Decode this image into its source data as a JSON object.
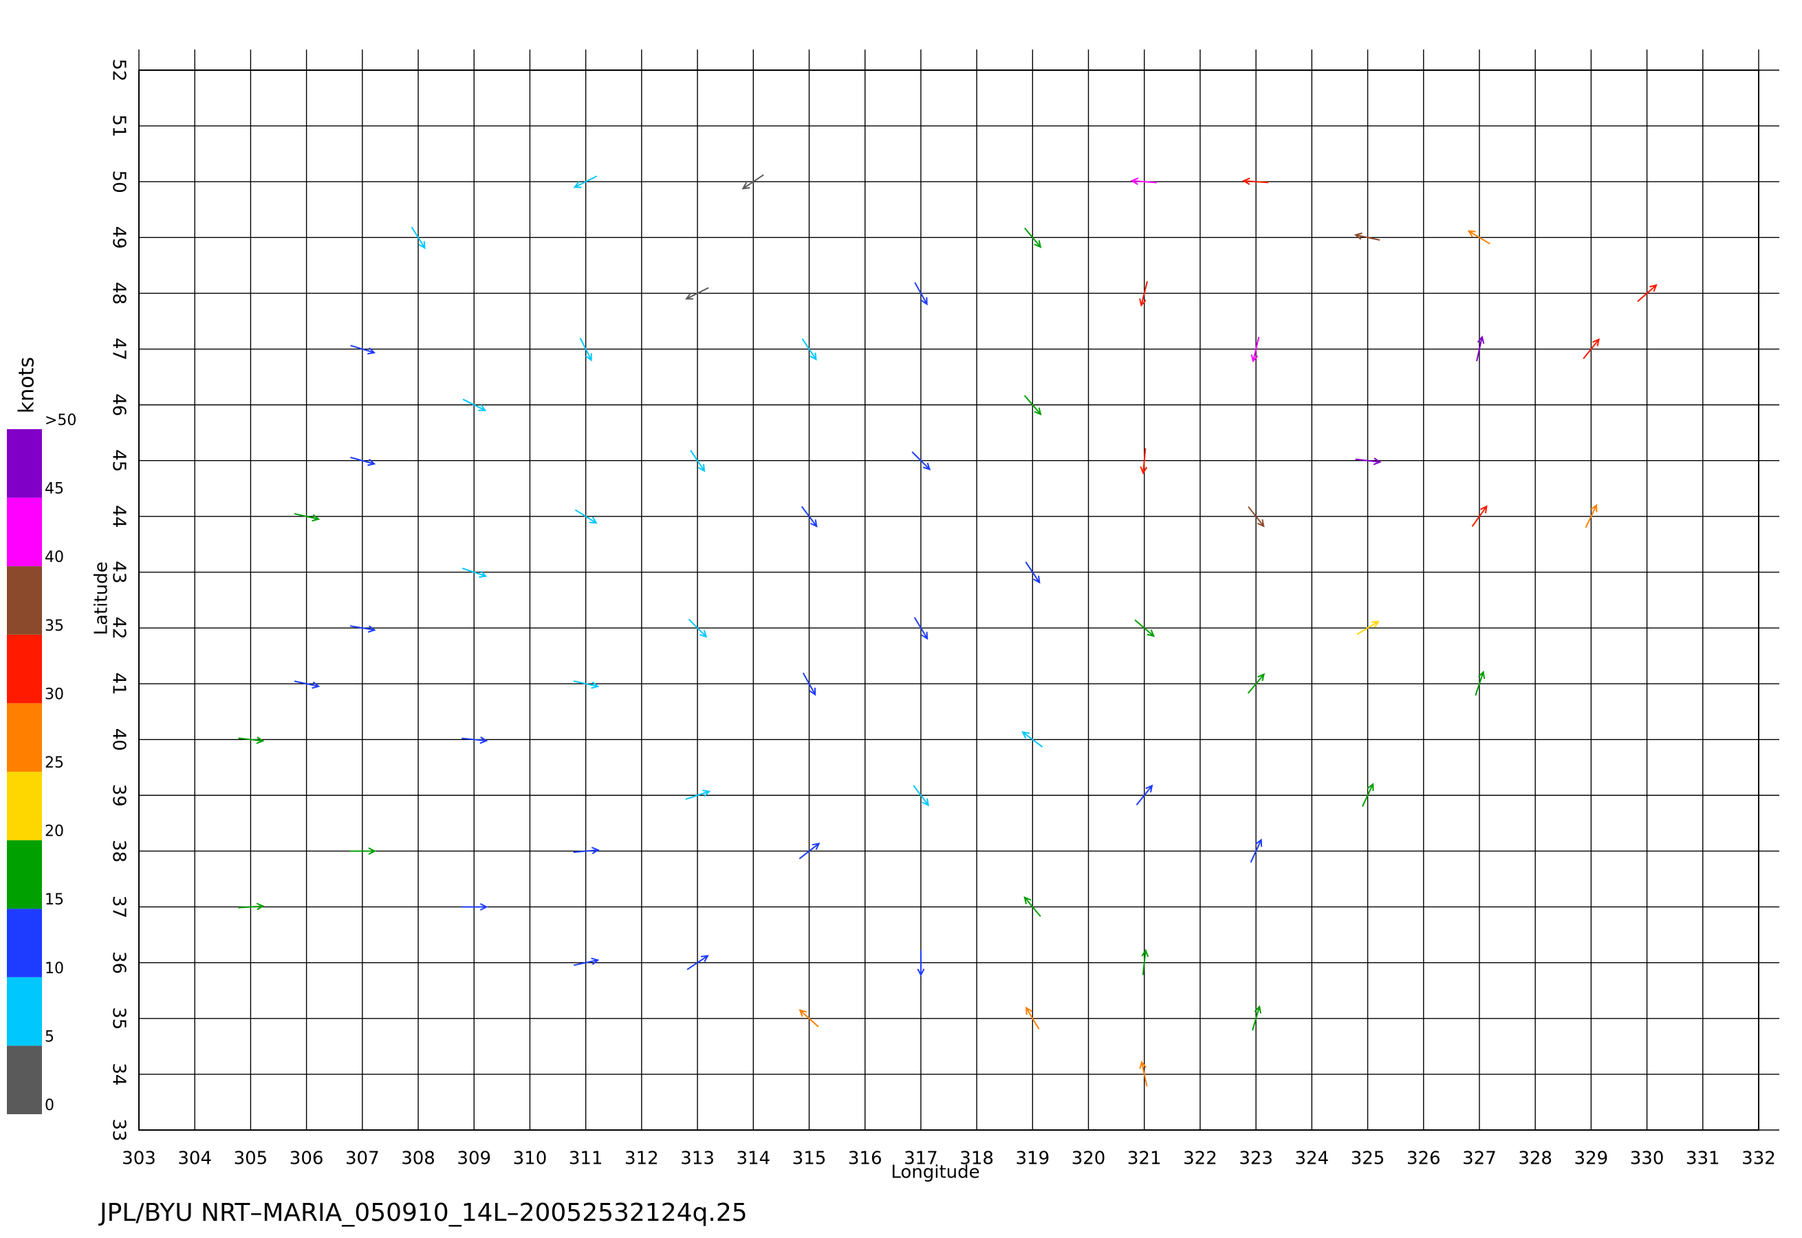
{
  "chart_data": {
    "type": "quiver",
    "x_label": "Longitude",
    "y_label": "Latitude",
    "footer": "JPL/BYU  NRT–MARIA_050910_14L–20052532124q.25",
    "xlim": [
      303,
      332
    ],
    "ylim": [
      33,
      52
    ],
    "xticks": [
      303,
      304,
      305,
      306,
      307,
      308,
      309,
      310,
      311,
      312,
      313,
      314,
      315,
      316,
      317,
      318,
      319,
      320,
      321,
      322,
      323,
      324,
      325,
      326,
      327,
      328,
      329,
      330,
      331,
      332
    ],
    "yticks": [
      33,
      34,
      35,
      36,
      37,
      38,
      39,
      40,
      41,
      42,
      43,
      44,
      45,
      46,
      47,
      48,
      49,
      50,
      51,
      52
    ],
    "grid": true,
    "colorbar": {
      "label": "knots",
      "ticks": [
        0,
        5,
        10,
        15,
        20,
        25,
        30,
        35,
        40,
        45,
        {
          "value": 50,
          "label": ">50"
        }
      ],
      "colors": [
        "#5a5a5a",
        "#00c8ff",
        "#1e3cff",
        "#00a000",
        "#ffd700",
        "#ff8000",
        "#ff1a00",
        "#8b4a2b",
        "#ff00ff",
        "#8000c8"
      ]
    },
    "x": [
      305,
      305,
      307,
      307,
      307,
      309,
      309,
      309,
      309,
      308,
      311,
      311,
      311,
      311,
      311,
      311,
      313,
      313,
      313,
      313,
      313,
      314,
      315,
      315,
      315,
      315,
      315,
      317,
      317,
      317,
      317,
      317,
      319,
      319,
      319,
      319,
      319,
      319,
      321,
      321,
      321,
      321,
      321,
      321,
      321,
      323,
      323,
      323,
      323,
      323,
      325,
      325,
      325,
      325,
      327,
      327,
      327,
      329,
      329,
      330,
      323,
      327,
      307,
      306,
      306
    ],
    "y": [
      37,
      40,
      38,
      42,
      45,
      37,
      40,
      43,
      46,
      49,
      50,
      47,
      44,
      41,
      38,
      36,
      48,
      45,
      42,
      39,
      36,
      50,
      47,
      44,
      41,
      38,
      35,
      48,
      45,
      42,
      39,
      36,
      49,
      46,
      43,
      40,
      37,
      35,
      50,
      48,
      45,
      42,
      39,
      36,
      34,
      47,
      44,
      41,
      38,
      35,
      49,
      45,
      42,
      39,
      47,
      44,
      41,
      47,
      44,
      48,
      50,
      49,
      47,
      44,
      41
    ],
    "u": [
      16,
      18,
      17,
      12,
      11,
      12,
      10,
      9,
      8,
      5,
      -6,
      3,
      8,
      9,
      11,
      14,
      -2,
      4,
      7,
      9,
      12,
      -3,
      4,
      6,
      5,
      9,
      -20,
      5,
      9,
      6,
      3,
      0,
      10,
      12,
      8,
      -4,
      -10,
      -15,
      -40,
      -8,
      -3,
      14,
      8,
      2,
      -6,
      -10,
      22,
      10,
      6,
      5,
      -38,
      45,
      20,
      8,
      10,
      20,
      6,
      20,
      12,
      25,
      -30,
      -25,
      10,
      18,
      14
    ],
    "v": [
      1,
      -2,
      0,
      -2,
      -3,
      0,
      -1,
      -3,
      -4,
      -8,
      -3,
      -6,
      -5,
      -2,
      1,
      3,
      -1,
      -6,
      -7,
      3,
      8,
      -2,
      -6,
      -8,
      -9,
      7,
      18,
      -9,
      -9,
      -10,
      -4,
      -10,
      -12,
      -14,
      -12,
      3,
      12,
      25,
      3,
      -32,
      -33,
      -12,
      10,
      18,
      28,
      -42,
      -28,
      12,
      13,
      17,
      8,
      -5,
      12,
      17,
      45,
      28,
      18,
      25,
      25,
      22,
      2,
      15,
      -3,
      -4,
      -3
    ]
  }
}
